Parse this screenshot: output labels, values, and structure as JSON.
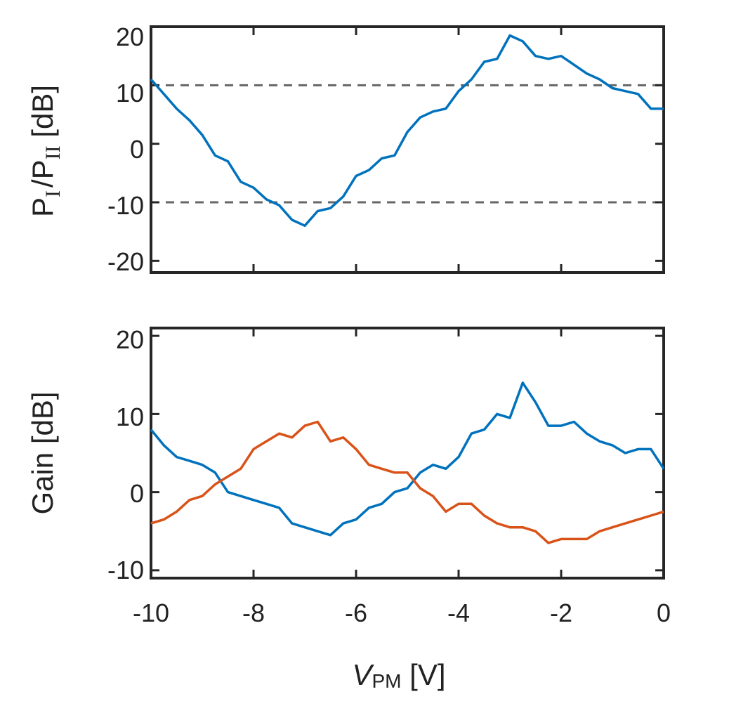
{
  "chart_data": [
    {
      "type": "line",
      "ylabel_parts": {
        "p1": "P",
        "s1": "I",
        "slash": "/",
        "p2": "P",
        "s2": "II",
        "unit": " [dB]"
      },
      "xlim": [
        -10,
        0
      ],
      "ylim": [
        -22,
        20
      ],
      "yticks": [
        -20,
        -10,
        0,
        10,
        20
      ],
      "ytick_labels": [
        "-20",
        "-10",
        "0",
        "10",
        "20"
      ],
      "xticks": [
        -10,
        -8,
        -6,
        -4,
        -2,
        0
      ],
      "reference_lines": [
        10,
        -10
      ],
      "series": [
        {
          "name": "P_I/P_II",
          "color": "#0072BD",
          "x": [
            -10,
            -9.75,
            -9.5,
            -9.25,
            -9.0,
            -8.75,
            -8.5,
            -8.25,
            -8.0,
            -7.75,
            -7.5,
            -7.25,
            -7.0,
            -6.75,
            -6.5,
            -6.25,
            -6.0,
            -5.75,
            -5.5,
            -5.25,
            -5.0,
            -4.75,
            -4.5,
            -4.25,
            -4.0,
            -3.75,
            -3.5,
            -3.25,
            -3.0,
            -2.75,
            -2.5,
            -2.25,
            -2.0,
            -1.75,
            -1.5,
            -1.25,
            -1.0,
            -0.75,
            -0.5,
            -0.25,
            0.0
          ],
          "y": [
            11,
            8.5,
            6,
            4,
            1.5,
            -2,
            -3,
            -6.5,
            -7.5,
            -9.5,
            -10.5,
            -13,
            -14,
            -11.5,
            -11,
            -9,
            -5.5,
            -4.5,
            -2.5,
            -2,
            2,
            4.5,
            5.5,
            6,
            9,
            11,
            14,
            14.5,
            18.5,
            17.5,
            15,
            14.5,
            15,
            13.5,
            12,
            11,
            9.5,
            9,
            8.5,
            6,
            6
          ]
        }
      ]
    },
    {
      "type": "line",
      "ylabel": "Gain [dB]",
      "xlabel_main": "V",
      "xlabel_sub": "PM",
      "xlabel_unit": " [V]",
      "xlim": [
        -10,
        0
      ],
      "ylim": [
        -11,
        21
      ],
      "yticks": [
        -10,
        0,
        10,
        20
      ],
      "ytick_labels": [
        "-10",
        "0",
        "10",
        "20"
      ],
      "xticks": [
        -10,
        -8,
        -6,
        -4,
        -2,
        0
      ],
      "xtick_labels": [
        "-10",
        "-8",
        "-6",
        "-4",
        "-2",
        "0"
      ],
      "series": [
        {
          "name": "blue",
          "color": "#0072BD",
          "x": [
            -10,
            -9.75,
            -9.5,
            -9.25,
            -9.0,
            -8.75,
            -8.5,
            -8.25,
            -8.0,
            -7.75,
            -7.5,
            -7.25,
            -7.0,
            -6.75,
            -6.5,
            -6.25,
            -6.0,
            -5.75,
            -5.5,
            -5.25,
            -5.0,
            -4.75,
            -4.5,
            -4.25,
            -4.0,
            -3.75,
            -3.5,
            -3.25,
            -3.0,
            -2.75,
            -2.5,
            -2.25,
            -2.0,
            -1.75,
            -1.5,
            -1.25,
            -1.0,
            -0.75,
            -0.5,
            -0.25,
            0.0
          ],
          "y": [
            8,
            6,
            4.5,
            4,
            3.5,
            2.5,
            0,
            -0.5,
            -1,
            -1.5,
            -2,
            -4,
            -4.5,
            -5,
            -5.5,
            -4,
            -3.5,
            -2,
            -1.5,
            0,
            0.5,
            2.5,
            3.5,
            3,
            4.5,
            7.5,
            8,
            10,
            9.5,
            14,
            11.5,
            8.5,
            8.5,
            9,
            7.5,
            6.5,
            6,
            5,
            5.5,
            5.5,
            3
          ]
        },
        {
          "name": "orange",
          "color": "#D95319",
          "x": [
            -10,
            -9.75,
            -9.5,
            -9.25,
            -9.0,
            -8.75,
            -8.5,
            -8.25,
            -8.0,
            -7.75,
            -7.5,
            -7.25,
            -7.0,
            -6.75,
            -6.5,
            -6.25,
            -6.0,
            -5.75,
            -5.5,
            -5.25,
            -5.0,
            -4.75,
            -4.5,
            -4.25,
            -4.0,
            -3.75,
            -3.5,
            -3.25,
            -3.0,
            -2.75,
            -2.5,
            -2.25,
            -2.0,
            -1.75,
            -1.5,
            -1.25,
            -1.0,
            -0.75,
            -0.5,
            -0.25,
            0.0
          ],
          "y": [
            -4,
            -3.5,
            -2.5,
            -1,
            -0.5,
            1,
            2,
            3,
            5.5,
            6.5,
            7.5,
            7,
            8.5,
            9,
            6.5,
            7,
            5.5,
            3.5,
            3,
            2.5,
            2.5,
            0.5,
            -0.5,
            -2.5,
            -1.5,
            -1.5,
            -3,
            -4,
            -4.5,
            -4.5,
            -5,
            -6.5,
            -6,
            -6,
            -6,
            -5,
            -4.5,
            -4,
            -3.5,
            -3,
            -2.5
          ]
        }
      ]
    }
  ]
}
